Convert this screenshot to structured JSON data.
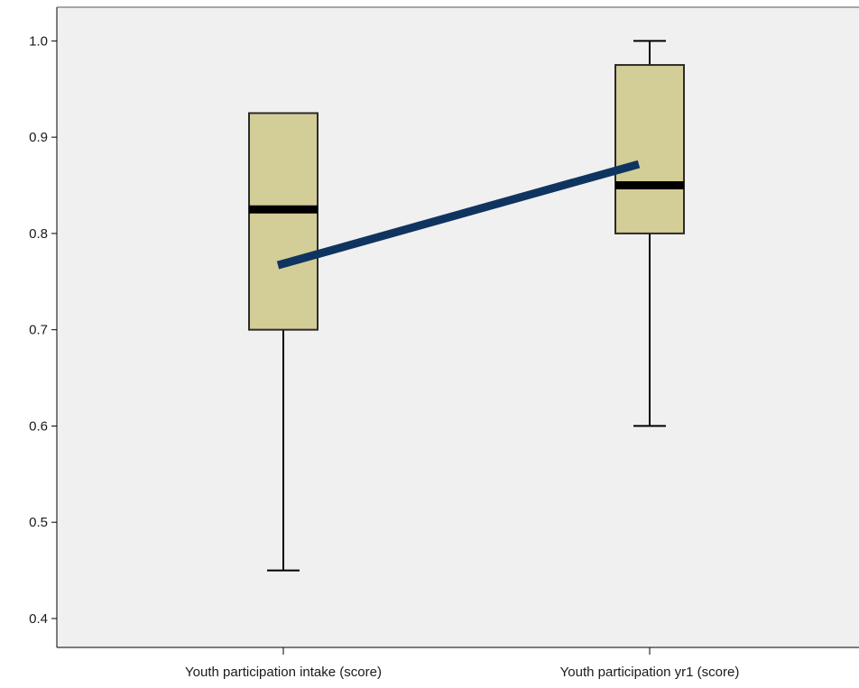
{
  "chart_data": {
    "type": "box",
    "title": "",
    "xlabel": "",
    "ylabel": "",
    "ylim": [
      0.37,
      1.035
    ],
    "yticks": [
      0.4,
      0.5,
      0.6,
      0.7,
      0.8,
      0.9,
      1.0
    ],
    "ytick_labels": [
      "0.4",
      "0.5",
      "0.6",
      "0.7",
      "0.8",
      "0.9",
      "1.0"
    ],
    "categories": [
      "Youth participation intake (score)",
      "Youth participation yr1 (score)"
    ],
    "boxes": [
      {
        "whisker_low": 0.45,
        "q1": 0.7,
        "median": 0.825,
        "q3": 0.925,
        "whisker_high": 0.925
      },
      {
        "whisker_low": 0.6,
        "q1": 0.8,
        "median": 0.85,
        "q3": 0.975,
        "whisker_high": 1.0
      }
    ],
    "mean_line": {
      "values": [
        0.767,
        0.872
      ]
    },
    "grid": false,
    "colors": {
      "plot_background": "#f0f0f0",
      "box_fill": "#d3cd97",
      "box_stroke": "#2b2b2b",
      "median": "#000000",
      "mean_line": "#0f3460"
    }
  }
}
